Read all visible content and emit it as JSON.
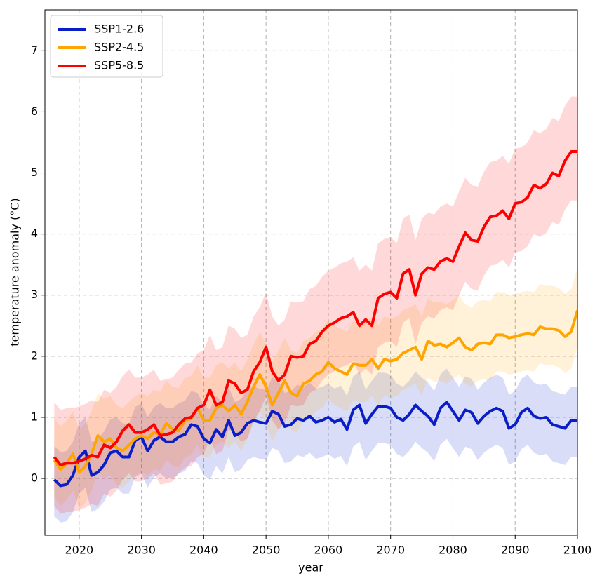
{
  "chart_data": {
    "type": "line",
    "xlabel": "year",
    "ylabel": "temperature anomaly (°C)",
    "x": [
      2016,
      2017,
      2018,
      2019,
      2020,
      2021,
      2022,
      2023,
      2024,
      2025,
      2026,
      2027,
      2028,
      2029,
      2030,
      2031,
      2032,
      2033,
      2034,
      2035,
      2036,
      2037,
      2038,
      2039,
      2040,
      2041,
      2042,
      2043,
      2044,
      2045,
      2046,
      2047,
      2048,
      2049,
      2050,
      2051,
      2052,
      2053,
      2054,
      2055,
      2056,
      2057,
      2058,
      2059,
      2060,
      2061,
      2062,
      2063,
      2064,
      2065,
      2066,
      2067,
      2068,
      2069,
      2070,
      2071,
      2072,
      2073,
      2074,
      2075,
      2076,
      2077,
      2078,
      2079,
      2080,
      2081,
      2082,
      2083,
      2084,
      2085,
      2086,
      2087,
      2088,
      2089,
      2090,
      2091,
      2092,
      2093,
      2094,
      2095,
      2096,
      2097,
      2098,
      2099,
      2100
    ],
    "series": [
      {
        "name": "SSP1-2.6",
        "color": "#0a1ec8",
        "values": [
          -0.02,
          -0.12,
          -0.1,
          0.05,
          0.35,
          0.45,
          0.05,
          0.1,
          0.22,
          0.42,
          0.45,
          0.35,
          0.35,
          0.62,
          0.68,
          0.45,
          0.62,
          0.68,
          0.6,
          0.6,
          0.68,
          0.72,
          0.88,
          0.85,
          0.65,
          0.58,
          0.8,
          0.68,
          0.95,
          0.7,
          0.75,
          0.9,
          0.95,
          0.92,
          0.9,
          1.1,
          1.05,
          0.85,
          0.88,
          0.98,
          0.95,
          1.02,
          0.92,
          0.95,
          1.0,
          0.92,
          0.97,
          0.8,
          1.12,
          1.2,
          0.9,
          1.05,
          1.18,
          1.18,
          1.15,
          1.0,
          0.95,
          1.05,
          1.2,
          1.1,
          1.02,
          0.88,
          1.15,
          1.25,
          1.1,
          0.95,
          1.12,
          1.08,
          0.9,
          1.02,
          1.1,
          1.15,
          1.1,
          0.82,
          0.88,
          1.08,
          1.15,
          1.02,
          0.98,
          1.0,
          0.88,
          0.85,
          0.82,
          0.95,
          0.95
        ],
        "lower": [
          -0.62,
          -0.72,
          -0.7,
          -0.55,
          -0.25,
          -0.15,
          -0.55,
          -0.5,
          -0.38,
          -0.18,
          -0.15,
          -0.25,
          -0.25,
          0.02,
          0.08,
          -0.15,
          0.02,
          0.08,
          0,
          0,
          0.08,
          0.12,
          0.28,
          0.25,
          0.05,
          -0.02,
          0.2,
          0.08,
          0.35,
          0.1,
          0.15,
          0.3,
          0.35,
          0.32,
          0.3,
          0.5,
          0.45,
          0.25,
          0.28,
          0.38,
          0.35,
          0.42,
          0.32,
          0.35,
          0.4,
          0.32,
          0.37,
          0.2,
          0.52,
          0.6,
          0.3,
          0.45,
          0.58,
          0.58,
          0.55,
          0.4,
          0.35,
          0.45,
          0.6,
          0.5,
          0.42,
          0.28,
          0.55,
          0.65,
          0.5,
          0.35,
          0.52,
          0.48,
          0.3,
          0.42,
          0.5,
          0.55,
          0.5,
          0.22,
          0.28,
          0.48,
          0.55,
          0.42,
          0.38,
          0.4,
          0.28,
          0.25,
          0.22,
          0.35,
          0.35
        ],
        "upper": [
          0.53,
          0.43,
          0.45,
          0.6,
          0.9,
          1.0,
          0.6,
          0.65,
          0.77,
          0.97,
          1.0,
          0.9,
          0.9,
          1.17,
          1.23,
          1.0,
          1.17,
          1.23,
          1.15,
          1.15,
          1.23,
          1.27,
          1.43,
          1.4,
          1.2,
          1.13,
          1.35,
          1.23,
          1.5,
          1.25,
          1.3,
          1.45,
          1.5,
          1.47,
          1.45,
          1.65,
          1.6,
          1.4,
          1.43,
          1.53,
          1.5,
          1.57,
          1.47,
          1.5,
          1.55,
          1.47,
          1.52,
          1.35,
          1.67,
          1.75,
          1.45,
          1.6,
          1.73,
          1.73,
          1.7,
          1.55,
          1.5,
          1.6,
          1.75,
          1.65,
          1.57,
          1.43,
          1.7,
          1.8,
          1.65,
          1.5,
          1.67,
          1.63,
          1.45,
          1.57,
          1.65,
          1.7,
          1.65,
          1.37,
          1.43,
          1.63,
          1.7,
          1.57,
          1.53,
          1.55,
          1.43,
          1.4,
          1.37,
          1.5,
          1.5
        ]
      },
      {
        "name": "SSP2-4.5",
        "color": "#ffa500",
        "values": [
          0.3,
          0.15,
          0.25,
          0.4,
          0.1,
          0.2,
          0.4,
          0.7,
          0.6,
          0.65,
          0.5,
          0.45,
          0.55,
          0.65,
          0.7,
          0.65,
          0.75,
          0.72,
          0.9,
          0.8,
          0.78,
          0.95,
          0.98,
          1.15,
          0.95,
          0.95,
          1.15,
          1.2,
          1.1,
          1.2,
          1.05,
          1.25,
          1.5,
          1.7,
          1.5,
          1.2,
          1.4,
          1.6,
          1.4,
          1.35,
          1.55,
          1.6,
          1.7,
          1.75,
          1.9,
          1.8,
          1.75,
          1.7,
          1.88,
          1.85,
          1.85,
          1.95,
          1.8,
          1.95,
          1.92,
          1.95,
          2.05,
          2.1,
          2.15,
          1.95,
          2.25,
          2.18,
          2.2,
          2.15,
          2.22,
          2.3,
          2.15,
          2.1,
          2.2,
          2.22,
          2.2,
          2.35,
          2.35,
          2.3,
          2.32,
          2.35,
          2.37,
          2.35,
          2.48,
          2.45,
          2.45,
          2.42,
          2.32,
          2.4,
          2.75
        ],
        "lower": [
          -0.3,
          -0.45,
          -0.35,
          -0.2,
          -0.5,
          -0.4,
          -0.2,
          0.1,
          0,
          0.05,
          -0.1,
          -0.15,
          -0.05,
          0.05,
          0.1,
          0.05,
          0.15,
          0.12,
          0.3,
          0.2,
          0.18,
          0.35,
          0.38,
          0.55,
          0.35,
          0.35,
          0.55,
          0.6,
          0.5,
          0.6,
          0.45,
          0.65,
          0.9,
          1.1,
          0.9,
          0.6,
          0.8,
          1.0,
          0.8,
          0.75,
          0.95,
          1.0,
          1.1,
          1.15,
          1.3,
          1.2,
          1.15,
          1.1,
          1.28,
          1.25,
          1.25,
          1.35,
          1.2,
          1.35,
          1.32,
          1.35,
          1.45,
          1.5,
          1.55,
          1.35,
          1.65,
          1.58,
          1.6,
          1.55,
          1.62,
          1.7,
          1.55,
          1.5,
          1.6,
          1.62,
          1.6,
          1.75,
          1.75,
          1.7,
          1.72,
          1.75,
          1.77,
          1.75,
          1.88,
          1.85,
          1.85,
          1.82,
          1.72,
          1.8,
          2.15
        ],
        "upper": [
          1.0,
          0.85,
          0.95,
          1.1,
          0.8,
          0.9,
          1.1,
          1.4,
          1.3,
          1.35,
          1.2,
          1.15,
          1.25,
          1.35,
          1.4,
          1.35,
          1.45,
          1.42,
          1.6,
          1.5,
          1.48,
          1.65,
          1.68,
          1.85,
          1.65,
          1.65,
          1.85,
          1.9,
          1.8,
          1.9,
          1.75,
          1.95,
          2.2,
          2.4,
          2.2,
          1.9,
          2.1,
          2.3,
          2.1,
          2.05,
          2.25,
          2.3,
          2.4,
          2.45,
          2.6,
          2.5,
          2.45,
          2.4,
          2.58,
          2.55,
          2.55,
          2.65,
          2.5,
          2.65,
          2.62,
          2.65,
          2.75,
          2.8,
          2.85,
          2.65,
          2.95,
          2.88,
          2.9,
          2.85,
          2.92,
          3.0,
          2.85,
          2.8,
          2.9,
          2.92,
          2.9,
          3.05,
          3.05,
          3.0,
          3.02,
          3.05,
          3.07,
          3.05,
          3.18,
          3.15,
          3.15,
          3.12,
          3.02,
          3.1,
          3.45
        ]
      },
      {
        "name": "SSP5-8.5",
        "color": "#ff0000",
        "values": [
          0.35,
          0.22,
          0.25,
          0.25,
          0.28,
          0.32,
          0.38,
          0.35,
          0.55,
          0.5,
          0.6,
          0.78,
          0.88,
          0.75,
          0.75,
          0.8,
          0.88,
          0.7,
          0.72,
          0.75,
          0.88,
          0.98,
          1.0,
          1.15,
          1.2,
          1.45,
          1.2,
          1.25,
          1.6,
          1.55,
          1.4,
          1.45,
          1.75,
          1.9,
          2.15,
          1.75,
          1.6,
          1.7,
          2.0,
          1.98,
          2.0,
          2.2,
          2.25,
          2.4,
          2.5,
          2.55,
          2.62,
          2.65,
          2.72,
          2.5,
          2.6,
          2.5,
          2.95,
          3.02,
          3.05,
          2.95,
          3.35,
          3.42,
          3.0,
          3.35,
          3.45,
          3.42,
          3.55,
          3.6,
          3.55,
          3.8,
          4.02,
          3.9,
          3.88,
          4.12,
          4.28,
          4.3,
          4.38,
          4.25,
          4.5,
          4.52,
          4.6,
          4.8,
          4.75,
          4.82,
          5.0,
          4.95,
          5.2,
          5.35,
          5.35
        ],
        "lower": [
          -0.45,
          -0.58,
          -0.55,
          -0.55,
          -0.52,
          -0.48,
          -0.42,
          -0.45,
          -0.25,
          -0.3,
          -0.2,
          -0.02,
          0.08,
          -0.05,
          -0.05,
          0,
          0.08,
          -0.1,
          -0.08,
          -0.05,
          0.08,
          0.18,
          0.2,
          0.35,
          0.4,
          0.65,
          0.4,
          0.45,
          0.8,
          0.75,
          0.6,
          0.65,
          0.95,
          1.1,
          1.35,
          0.95,
          0.8,
          0.9,
          1.2,
          1.18,
          1.2,
          1.4,
          1.45,
          1.6,
          1.7,
          1.75,
          1.82,
          1.85,
          1.92,
          1.7,
          1.8,
          1.7,
          2.15,
          2.22,
          2.25,
          2.15,
          2.55,
          2.62,
          2.2,
          2.55,
          2.65,
          2.62,
          2.75,
          2.8,
          2.75,
          3.0,
          3.22,
          3.1,
          3.08,
          3.32,
          3.48,
          3.5,
          3.58,
          3.45,
          3.7,
          3.72,
          3.8,
          4.0,
          3.95,
          4.02,
          4.2,
          4.15,
          4.4,
          4.55,
          4.55
        ],
        "upper": [
          1.25,
          1.12,
          1.15,
          1.15,
          1.18,
          1.22,
          1.28,
          1.25,
          1.45,
          1.4,
          1.5,
          1.68,
          1.78,
          1.65,
          1.65,
          1.7,
          1.78,
          1.6,
          1.62,
          1.65,
          1.78,
          1.88,
          1.9,
          2.05,
          2.1,
          2.35,
          2.1,
          2.15,
          2.5,
          2.45,
          2.3,
          2.35,
          2.65,
          2.8,
          3.05,
          2.65,
          2.5,
          2.6,
          2.9,
          2.88,
          2.9,
          3.1,
          3.15,
          3.3,
          3.4,
          3.45,
          3.52,
          3.55,
          3.62,
          3.4,
          3.5,
          3.4,
          3.85,
          3.92,
          3.95,
          3.85,
          4.25,
          4.32,
          3.9,
          4.25,
          4.35,
          4.32,
          4.45,
          4.5,
          4.45,
          4.7,
          4.92,
          4.8,
          4.78,
          5.02,
          5.18,
          5.2,
          5.28,
          5.15,
          5.4,
          5.42,
          5.5,
          5.7,
          5.65,
          5.72,
          5.9,
          5.85,
          6.1,
          6.25,
          6.25
        ]
      }
    ],
    "xlim": [
      2014.5,
      2100
    ],
    "xticks": [
      2020,
      2030,
      2040,
      2050,
      2060,
      2070,
      2080,
      2090,
      2100
    ],
    "ylim": [
      -0.93,
      7.67
    ],
    "yticks": [
      0,
      1,
      2,
      3,
      4,
      5,
      6,
      7
    ],
    "grid": true,
    "legend": "upper left"
  }
}
